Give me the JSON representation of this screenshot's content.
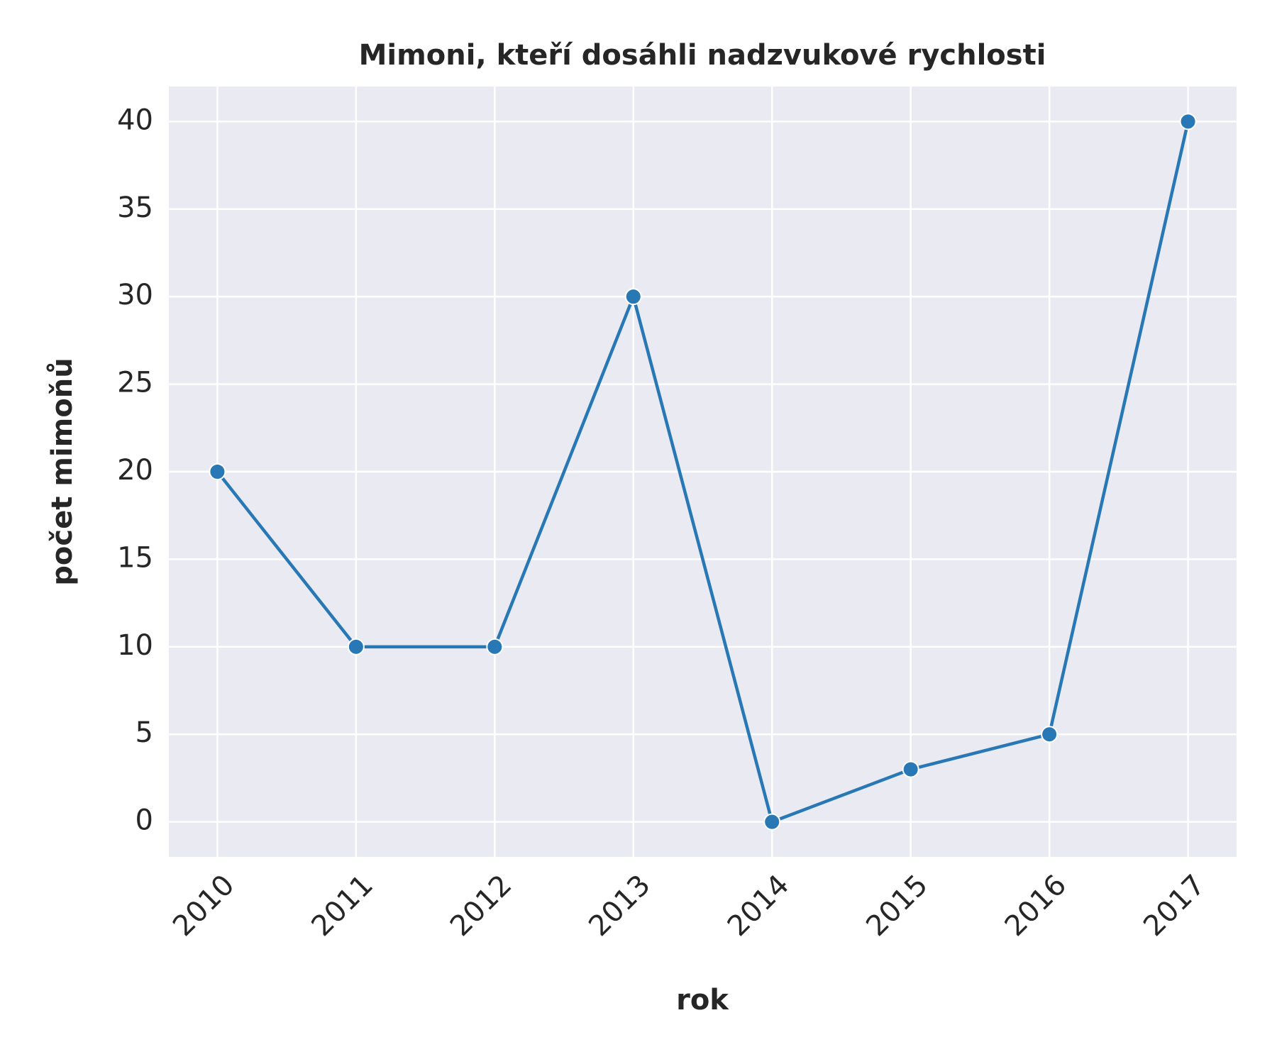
{
  "chart_data": {
    "type": "line",
    "title": "Mimoni, kteří dosáhli nadzvukové rychlosti",
    "x_label": "rok",
    "y_label": "počet mimoňů",
    "x": [
      2010,
      2011,
      2012,
      2013,
      2014,
      2015,
      2016,
      2017
    ],
    "series": [
      {
        "name": "počet mimoňů",
        "color": "#2878b5",
        "values": [
          20,
          10,
          10,
          30,
          0,
          3,
          5,
          40
        ]
      }
    ],
    "xlim": [
      2009.65,
      2017.35
    ],
    "xticks": [
      2010,
      2011,
      2012,
      2013,
      2014,
      2015,
      2016,
      2017
    ],
    "ylim": [
      -2,
      42
    ],
    "yticks": [
      0,
      5,
      10,
      15,
      20,
      25,
      30,
      35,
      40
    ],
    "grid": true,
    "background": "#eaeaf2"
  }
}
